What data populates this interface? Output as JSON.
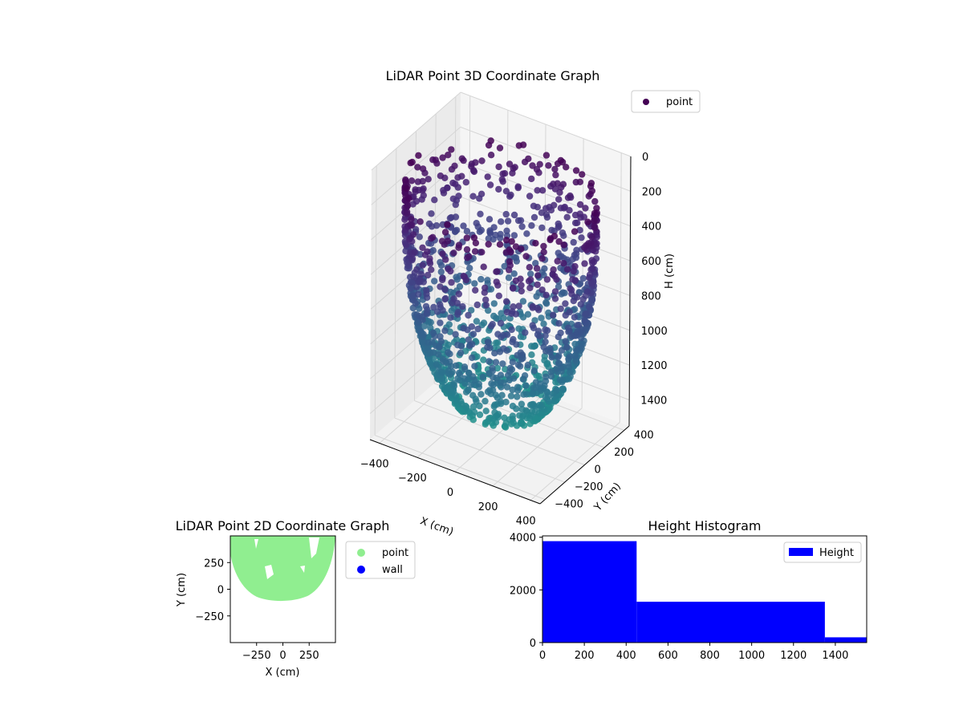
{
  "figure": {
    "background": "#ffffff"
  },
  "chart_data": [
    {
      "id": "lidar_3d",
      "type": "scatter",
      "title": "LiDAR Point 3D Coordinate Graph",
      "xlabel": "X (cm)",
      "ylabel": "Y (cm)",
      "zlabel": "H (cm)",
      "x_ticks": [
        -400,
        -200,
        0,
        200,
        400
      ],
      "y_ticks": [
        -400,
        -200,
        0,
        200,
        400
      ],
      "z_ticks": [
        0,
        200,
        400,
        600,
        800,
        1000,
        1200,
        1400
      ],
      "xlim": [
        -450,
        450
      ],
      "ylim": [
        -450,
        450
      ],
      "zlim": [
        1550,
        0
      ],
      "z_inverted": true,
      "colormap": "viridis",
      "legend": {
        "entries": [
          {
            "label": "point",
            "color": "#440154"
          }
        ],
        "placement": "top-right"
      },
      "grid": true,
      "shape": "bowl-shaped point cloud: wall from about 150 to 1400 cm depth, radius about 450 cm at top narrowing toward the bottom"
    },
    {
      "id": "lidar_2d",
      "type": "scatter",
      "title": "LiDAR Point 2D Coordinate Graph",
      "xlabel": "X (cm)",
      "ylabel": "Y (cm)",
      "x_ticks": [
        "−250",
        "0",
        "250"
      ],
      "y_ticks": [
        "250",
        "0",
        "−250"
      ],
      "xlim": [
        -500,
        500
      ],
      "ylim": [
        -500,
        500
      ],
      "legend": {
        "entries": [
          {
            "label": "point",
            "color": "#90ee90"
          },
          {
            "label": "wall",
            "color": "#0000ff"
          }
        ],
        "placement": "outside-right"
      },
      "grid": false
    },
    {
      "id": "height_hist",
      "type": "bar",
      "title": "Height Histogram",
      "xlabel": "",
      "ylabel": "",
      "bins": [
        {
          "start": 0,
          "end": 450,
          "count": 3850
        },
        {
          "start": 450,
          "end": 1350,
          "count": 1550
        },
        {
          "start": 1350,
          "end": 1550,
          "count": 200
        }
      ],
      "x_ticks": [
        0,
        200,
        400,
        600,
        800,
        1000,
        1200,
        1400
      ],
      "y_ticks": [
        0,
        2000,
        4000
      ],
      "xlim": [
        0,
        1550
      ],
      "ylim": [
        0,
        4050
      ],
      "color": "#0000ff",
      "legend": {
        "entries": [
          {
            "label": "Height",
            "color": "#0000ff"
          }
        ],
        "placement": "top-right"
      },
      "grid": false
    }
  ]
}
